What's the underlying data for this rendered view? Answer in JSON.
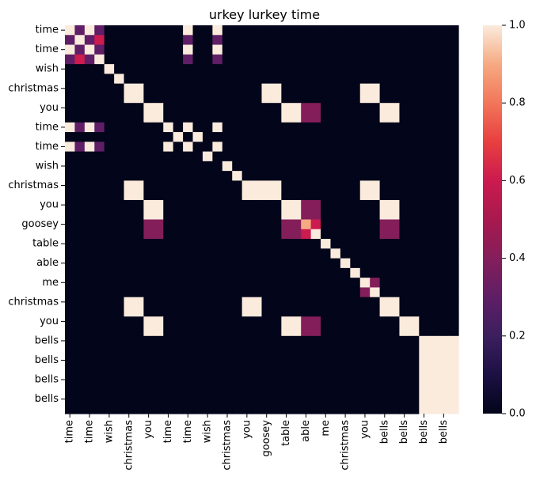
{
  "chart_data": {
    "type": "heatmap",
    "title": "urkey lurkey time",
    "xlabel": "",
    "ylabel": "",
    "x_tick_labels": [
      "time",
      "time",
      "wish",
      "christmas",
      "you",
      "time",
      "time",
      "wish",
      "christmas",
      "you",
      "goosey",
      "table",
      "able",
      "me",
      "christmas",
      "you",
      "bells",
      "bells",
      "bells",
      "bells"
    ],
    "y_tick_labels": [
      "time",
      "time",
      "wish",
      "christmas",
      "you",
      "time",
      "time",
      "wish",
      "christmas",
      "you",
      "goosey",
      "table",
      "able",
      "me",
      "christmas",
      "you",
      "bells",
      "bells",
      "bells",
      "bells"
    ],
    "colorbar": {
      "min": 0.0,
      "max": 1.0,
      "tick_labels": [
        "0.0",
        "0.2",
        "0.4",
        "0.6",
        "0.8",
        "1.0"
      ],
      "colormap": "rocket"
    },
    "grid": false,
    "values": [
      [
        1.0,
        0.3,
        1.0,
        0.3,
        0,
        0,
        0,
        0,
        0,
        0,
        0,
        0,
        1.0,
        0,
        0,
        1.0,
        0,
        0,
        0,
        0,
        0,
        0,
        0,
        0,
        0,
        0,
        0,
        0,
        0,
        0,
        0,
        0,
        0,
        0,
        0,
        0,
        0,
        0,
        0,
        0
      ],
      [
        0.3,
        1.0,
        0.3,
        0.6,
        0,
        0,
        0,
        0,
        0,
        0,
        0,
        0,
        0.3,
        0,
        0,
        0.3,
        0,
        0,
        0,
        0,
        0,
        0,
        0,
        0,
        0,
        0,
        0,
        0,
        0,
        0,
        0,
        0,
        0,
        0,
        0,
        0,
        0,
        0,
        0,
        0
      ],
      [
        1.0,
        0.3,
        1.0,
        0.3,
        0,
        0,
        0,
        0,
        0,
        0,
        0,
        0,
        1.0,
        0,
        0,
        1.0,
        0,
        0,
        0,
        0,
        0,
        0,
        0,
        0,
        0,
        0,
        0,
        0,
        0,
        0,
        0,
        0,
        0,
        0,
        0,
        0,
        0,
        0,
        0,
        0
      ],
      [
        0.3,
        0.6,
        0.3,
        1.0,
        0,
        0,
        0,
        0,
        0,
        0,
        0,
        0,
        0.3,
        0,
        0,
        0.3,
        0,
        0,
        0,
        0,
        0,
        0,
        0,
        0,
        0,
        0,
        0,
        0,
        0,
        0,
        0,
        0,
        0,
        0,
        0,
        0,
        0,
        0,
        0,
        0
      ],
      [
        0,
        0,
        0,
        0,
        1,
        0,
        0,
        0,
        0,
        0,
        0,
        0,
        0,
        0,
        0,
        0,
        0,
        0,
        0,
        0,
        0,
        0,
        0,
        0,
        0,
        0,
        0,
        0,
        0,
        0,
        0,
        0,
        0,
        0,
        0,
        0,
        0,
        0,
        0,
        0
      ],
      [
        0,
        0,
        0,
        0,
        0,
        1,
        0,
        0,
        0,
        0,
        0,
        0,
        0,
        0,
        0,
        0,
        0,
        0,
        0,
        0,
        0,
        0,
        0,
        0,
        0,
        0,
        0,
        0,
        0,
        0,
        0,
        0,
        0,
        0,
        0,
        0,
        0,
        0,
        0,
        0
      ],
      [
        0,
        0,
        0,
        0,
        0,
        0,
        1,
        1,
        0,
        0,
        0,
        0,
        0,
        0,
        0,
        0,
        0,
        0,
        0,
        0,
        1,
        1,
        0,
        0,
        0,
        0,
        0,
        0,
        0,
        0,
        1,
        1,
        0,
        0,
        0,
        0,
        0,
        0,
        0,
        0
      ],
      [
        0,
        0,
        0,
        0,
        0,
        0,
        1,
        1,
        0,
        0,
        0,
        0,
        0,
        0,
        0,
        0,
        0,
        0,
        0,
        0,
        1,
        1,
        0,
        0,
        0,
        0,
        0,
        0,
        0,
        0,
        1,
        1,
        0,
        0,
        0,
        0,
        0,
        0,
        0,
        0
      ],
      [
        0,
        0,
        0,
        0,
        0,
        0,
        0,
        0,
        1,
        1,
        0,
        0,
        0,
        0,
        0,
        0,
        0,
        0,
        0,
        0,
        0,
        0,
        1,
        1,
        0.4,
        0.4,
        0,
        0,
        0,
        0,
        0,
        0,
        1,
        1,
        0,
        0,
        0,
        0,
        0,
        0
      ],
      [
        0,
        0,
        0,
        0,
        0,
        0,
        0,
        0,
        1,
        1,
        0,
        0,
        0,
        0,
        0,
        0,
        0,
        0,
        0,
        0,
        0,
        0,
        1,
        1,
        0.4,
        0.4,
        0,
        0,
        0,
        0,
        0,
        0,
        1,
        1,
        0,
        0,
        0,
        0,
        0,
        0
      ],
      [
        1.0,
        0.3,
        1.0,
        0.3,
        0,
        0,
        0,
        0,
        0,
        0,
        1,
        0,
        1.0,
        0,
        0,
        1.0,
        0,
        0,
        0,
        0,
        0,
        0,
        0,
        0,
        0,
        0,
        0,
        0,
        0,
        0,
        0,
        0,
        0,
        0,
        0,
        0,
        0,
        0,
        0,
        0
      ],
      [
        0,
        0,
        0,
        0,
        0,
        0,
        0,
        0,
        0,
        0,
        0,
        1,
        0,
        1,
        0,
        0,
        0,
        0,
        0,
        0,
        0,
        0,
        0,
        0,
        0,
        0,
        0,
        0,
        0,
        0,
        0,
        0,
        0,
        0,
        0,
        0,
        0,
        0,
        0,
        0
      ],
      [
        1.0,
        0.3,
        1.0,
        0.3,
        0,
        0,
        0,
        0,
        0,
        0,
        1,
        0,
        1.0,
        0,
        0,
        1.0,
        0,
        0,
        0,
        0,
        0,
        0,
        0,
        0,
        0,
        0,
        0,
        0,
        0,
        0,
        0,
        0,
        0,
        0,
        0,
        0,
        0,
        0,
        0,
        0
      ],
      [
        0,
        0,
        0,
        0,
        0,
        0,
        0,
        0,
        0,
        0,
        0,
        0,
        0,
        0,
        1,
        0,
        0,
        0,
        0,
        0,
        0,
        0,
        0,
        0,
        0,
        0,
        0,
        0,
        0,
        0,
        0,
        0,
        0,
        0,
        0,
        0,
        0,
        0,
        0,
        0
      ],
      [
        0,
        0,
        0,
        0,
        0,
        0,
        0,
        0,
        0,
        0,
        0,
        0,
        0,
        0,
        0,
        0,
        1,
        0,
        0,
        0,
        0,
        0,
        0,
        0,
        0,
        0,
        0,
        0,
        0,
        0,
        0,
        0,
        0,
        0,
        0,
        0,
        0,
        0,
        0,
        0
      ],
      [
        0,
        0,
        0,
        0,
        0,
        0,
        0,
        0,
        0,
        0,
        0,
        0,
        0,
        0,
        0,
        0,
        0,
        1,
        0,
        0,
        0,
        0,
        0,
        0,
        0,
        0,
        0,
        0,
        0,
        0,
        0,
        0,
        0,
        0,
        0,
        0,
        0,
        0,
        0,
        0
      ],
      [
        0,
        0,
        0,
        0,
        0,
        0,
        1,
        1,
        0,
        0,
        0,
        0,
        0,
        0,
        0,
        0,
        0,
        0,
        1,
        1,
        1,
        1,
        0,
        0,
        0,
        0,
        0,
        0,
        0,
        0,
        1,
        1,
        0,
        0,
        0,
        0,
        0,
        0,
        0,
        0
      ],
      [
        0,
        0,
        0,
        0,
        0,
        0,
        1,
        1,
        0,
        0,
        0,
        0,
        0,
        0,
        0,
        0,
        0,
        0,
        1,
        1,
        1,
        1,
        0,
        0,
        0,
        0,
        0,
        0,
        0,
        0,
        1,
        1,
        0,
        0,
        0,
        0,
        0,
        0,
        0,
        0
      ],
      [
        0,
        0,
        0,
        0,
        0,
        0,
        0,
        0,
        1,
        1,
        0,
        0,
        0,
        0,
        0,
        0,
        0,
        0,
        0,
        0,
        0,
        0,
        1,
        1,
        0.4,
        0.4,
        0,
        0,
        0,
        0,
        0,
        0,
        1,
        1,
        0,
        0,
        0,
        0,
        0,
        0
      ],
      [
        0,
        0,
        0,
        0,
        0,
        0,
        0,
        0,
        1,
        1,
        0,
        0,
        0,
        0,
        0,
        0,
        0,
        0,
        0,
        0,
        0,
        0,
        1,
        1,
        0.4,
        0.4,
        0,
        0,
        0,
        0,
        0,
        0,
        1,
        1,
        0,
        0,
        0,
        0,
        0,
        0
      ],
      [
        0,
        0,
        0,
        0,
        0,
        0,
        0,
        0,
        0.4,
        0.4,
        0,
        0,
        0,
        0,
        0,
        0,
        0,
        0,
        0,
        0,
        0,
        0,
        0.4,
        0.4,
        0.9,
        0.6,
        0,
        0,
        0,
        0,
        0,
        0,
        0.4,
        0.4,
        0,
        0,
        0,
        0,
        0,
        0
      ],
      [
        0,
        0,
        0,
        0,
        0,
        0,
        0,
        0,
        0.4,
        0.4,
        0,
        0,
        0,
        0,
        0,
        0,
        0,
        0,
        0,
        0,
        0,
        0,
        0.4,
        0.4,
        0.6,
        1.0,
        0,
        0,
        0,
        0,
        0,
        0,
        0.4,
        0.4,
        0,
        0,
        0,
        0,
        0,
        0
      ],
      [
        0,
        0,
        0,
        0,
        0,
        0,
        0,
        0,
        0,
        0,
        0,
        0,
        0,
        0,
        0,
        0,
        0,
        0,
        0,
        0,
        0,
        0,
        0,
        0,
        0,
        0,
        1,
        0,
        0,
        0,
        0,
        0,
        0,
        0,
        0,
        0,
        0,
        0,
        0,
        0
      ],
      [
        0,
        0,
        0,
        0,
        0,
        0,
        0,
        0,
        0,
        0,
        0,
        0,
        0,
        0,
        0,
        0,
        0,
        0,
        0,
        0,
        0,
        0,
        0,
        0,
        0,
        0,
        0,
        1,
        0,
        0,
        0,
        0,
        0,
        0,
        0,
        0,
        0,
        0,
        0,
        0
      ],
      [
        0,
        0,
        0,
        0,
        0,
        0,
        0,
        0,
        0,
        0,
        0,
        0,
        0,
        0,
        0,
        0,
        0,
        0,
        0,
        0,
        0,
        0,
        0,
        0,
        0,
        0,
        0,
        0,
        1,
        0,
        0,
        0,
        0,
        0,
        0,
        0,
        0,
        0,
        0,
        0
      ],
      [
        0,
        0,
        0,
        0,
        0,
        0,
        0,
        0,
        0,
        0,
        0,
        0,
        0,
        0,
        0,
        0,
        0,
        0,
        0,
        0,
        0,
        0,
        0,
        0,
        0,
        0,
        0,
        0,
        0,
        1,
        0,
        0,
        0,
        0,
        0,
        0,
        0,
        0,
        0,
        0
      ],
      [
        0,
        0,
        0,
        0,
        0,
        0,
        0,
        0,
        0,
        0,
        0,
        0,
        0,
        0,
        0,
        0,
        0,
        0,
        0,
        0,
        0,
        0,
        0,
        0,
        0,
        0,
        0,
        0,
        0,
        0,
        1,
        0.4,
        0,
        0,
        0,
        0,
        0,
        0,
        0,
        0
      ],
      [
        0,
        0,
        0,
        0,
        0,
        0,
        0,
        0,
        0,
        0,
        0,
        0,
        0,
        0,
        0,
        0,
        0,
        0,
        0,
        0,
        0,
        0,
        0,
        0,
        0,
        0,
        0,
        0,
        0,
        0,
        0.4,
        1,
        0,
        0,
        0,
        0,
        0,
        0,
        0,
        0
      ],
      [
        0,
        0,
        0,
        0,
        0,
        0,
        1,
        1,
        0,
        0,
        0,
        0,
        0,
        0,
        0,
        0,
        0,
        0,
        1,
        1,
        0,
        0,
        0,
        0,
        0,
        0,
        0,
        0,
        0,
        0,
        0,
        0,
        1,
        1,
        0,
        0,
        0,
        0,
        0,
        0
      ],
      [
        0,
        0,
        0,
        0,
        0,
        0,
        1,
        1,
        0,
        0,
        0,
        0,
        0,
        0,
        0,
        0,
        0,
        0,
        1,
        1,
        0,
        0,
        0,
        0,
        0,
        0,
        0,
        0,
        0,
        0,
        0,
        0,
        1,
        1,
        0,
        0,
        0,
        0,
        0,
        0
      ],
      [
        0,
        0,
        0,
        0,
        0,
        0,
        0,
        0,
        1,
        1,
        0,
        0,
        0,
        0,
        0,
        0,
        0,
        0,
        0,
        0,
        0,
        0,
        1,
        1,
        0.4,
        0.4,
        0,
        0,
        0,
        0,
        0,
        0,
        0,
        0,
        1,
        1,
        0,
        0,
        0,
        0
      ],
      [
        0,
        0,
        0,
        0,
        0,
        0,
        0,
        0,
        1,
        1,
        0,
        0,
        0,
        0,
        0,
        0,
        0,
        0,
        0,
        0,
        0,
        0,
        1,
        1,
        0.4,
        0.4,
        0,
        0,
        0,
        0,
        0,
        0,
        0,
        0,
        1,
        1,
        0,
        0,
        0,
        0
      ],
      [
        0,
        0,
        0,
        0,
        0,
        0,
        0,
        0,
        0,
        0,
        0,
        0,
        0,
        0,
        0,
        0,
        0,
        0,
        0,
        0,
        0,
        0,
        0,
        0,
        0,
        0,
        0,
        0,
        0,
        0,
        0,
        0,
        0,
        0,
        0,
        0,
        1,
        1,
        1,
        1
      ],
      [
        0,
        0,
        0,
        0,
        0,
        0,
        0,
        0,
        0,
        0,
        0,
        0,
        0,
        0,
        0,
        0,
        0,
        0,
        0,
        0,
        0,
        0,
        0,
        0,
        0,
        0,
        0,
        0,
        0,
        0,
        0,
        0,
        0,
        0,
        0,
        0,
        1,
        1,
        1,
        1
      ],
      [
        0,
        0,
        0,
        0,
        0,
        0,
        0,
        0,
        0,
        0,
        0,
        0,
        0,
        0,
        0,
        0,
        0,
        0,
        0,
        0,
        0,
        0,
        0,
        0,
        0,
        0,
        0,
        0,
        0,
        0,
        0,
        0,
        0,
        0,
        0,
        0,
        1,
        1,
        1,
        1
      ],
      [
        0,
        0,
        0,
        0,
        0,
        0,
        0,
        0,
        0,
        0,
        0,
        0,
        0,
        0,
        0,
        0,
        0,
        0,
        0,
        0,
        0,
        0,
        0,
        0,
        0,
        0,
        0,
        0,
        0,
        0,
        0,
        0,
        0,
        0,
        0,
        0,
        1,
        1,
        1,
        1
      ],
      [
        0,
        0,
        0,
        0,
        0,
        0,
        0,
        0,
        0,
        0,
        0,
        0,
        0,
        0,
        0,
        0,
        0,
        0,
        0,
        0,
        0,
        0,
        0,
        0,
        0,
        0,
        0,
        0,
        0,
        0,
        0,
        0,
        0,
        0,
        0,
        0,
        1,
        1,
        1,
        1
      ],
      [
        0,
        0,
        0,
        0,
        0,
        0,
        0,
        0,
        0,
        0,
        0,
        0,
        0,
        0,
        0,
        0,
        0,
        0,
        0,
        0,
        0,
        0,
        0,
        0,
        0,
        0,
        0,
        0,
        0,
        0,
        0,
        0,
        0,
        0,
        0,
        0,
        1,
        1,
        1,
        1
      ],
      [
        0,
        0,
        0,
        0,
        0,
        0,
        0,
        0,
        0,
        0,
        0,
        0,
        0,
        0,
        0,
        0,
        0,
        0,
        0,
        0,
        0,
        0,
        0,
        0,
        0,
        0,
        0,
        0,
        0,
        0,
        0,
        0,
        0,
        0,
        0,
        0,
        1,
        1,
        1,
        1
      ],
      [
        0,
        0,
        0,
        0,
        0,
        0,
        0,
        0,
        0,
        0,
        0,
        0,
        0,
        0,
        0,
        0,
        0,
        0,
        0,
        0,
        0,
        0,
        0,
        0,
        0,
        0,
        0,
        0,
        0,
        0,
        0,
        0,
        0,
        0,
        0,
        0,
        1,
        1,
        1,
        1
      ]
    ]
  }
}
